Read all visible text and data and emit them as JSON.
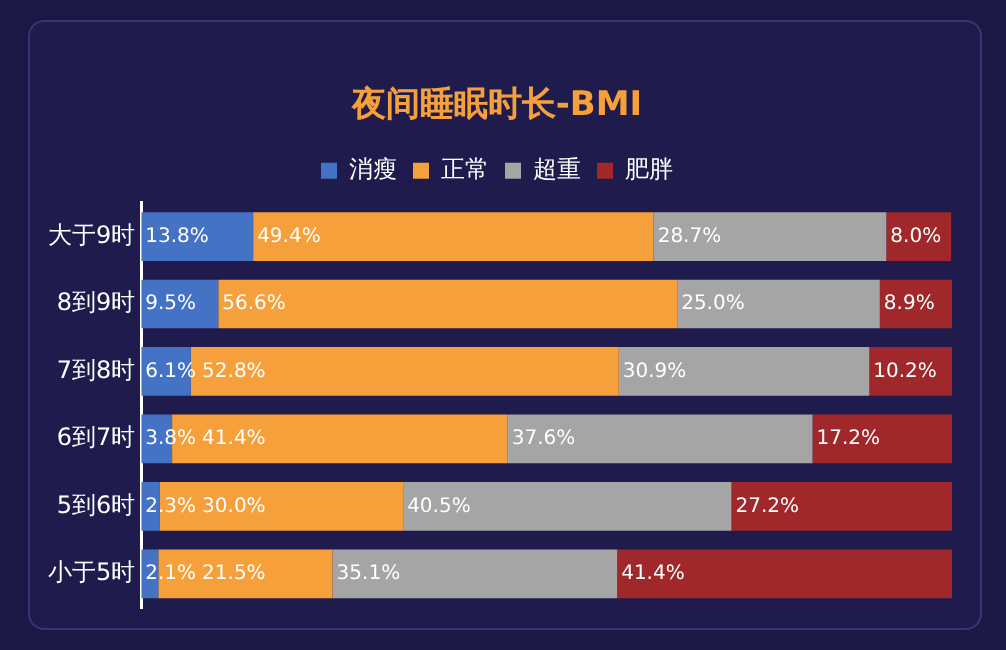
{
  "chart_data": {
    "type": "bar",
    "orientation": "horizontal",
    "stacked": true,
    "title": "夜间睡眠时长-BMI",
    "categories": [
      "大于9时",
      "8到9时",
      "7到8时",
      "6到7时",
      "5到6时",
      "小于5时"
    ],
    "xlim": [
      0,
      100
    ],
    "legend": "top",
    "grid": false,
    "tick_labels": "y",
    "series": [
      {
        "name": "消瘦",
        "color": "#4472c4",
        "values": [
          13.8,
          9.5,
          6.1,
          3.8,
          2.3,
          2.1
        ],
        "value_labels": [
          "13.8%",
          "9.5%",
          "6.1%",
          "3.8%",
          "2.3%",
          "2.1%"
        ]
      },
      {
        "name": "正常",
        "color": "#f5a03a",
        "values": [
          49.4,
          56.6,
          52.8,
          41.4,
          30.0,
          21.5
        ],
        "value_labels": [
          "49.4%",
          "56.6%",
          "52.8%",
          "41.4%",
          "30.0%",
          "21.5%"
        ]
      },
      {
        "name": "超重",
        "color": "#a5a5a5",
        "values": [
          28.7,
          25.0,
          30.9,
          37.6,
          40.5,
          35.1
        ],
        "value_labels": [
          "28.7%",
          "25.0%",
          "30.9%",
          "37.6%",
          "40.5%",
          "35.1%"
        ]
      },
      {
        "name": "肥胖",
        "color": "#a0282a",
        "values": [
          8.0,
          8.9,
          10.2,
          17.2,
          27.2,
          41.4
        ],
        "value_labels": [
          "8.0%",
          "8.9%",
          "10.2%",
          "17.2%",
          "27.2%",
          "41.4%"
        ]
      }
    ]
  }
}
